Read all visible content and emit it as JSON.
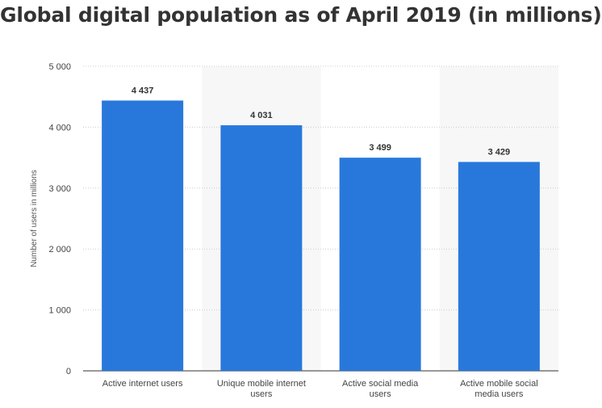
{
  "chart_data": {
    "type": "bar",
    "title": "Global digital population as of April 2019 (in millions)",
    "xlabel": "",
    "ylabel": "Number of users in millions",
    "categories": [
      "Active internet users",
      "Unique mobile internet users",
      "Active social media users",
      "Active mobile social media users"
    ],
    "values": [
      4437,
      4031,
      3499,
      3429
    ],
    "value_labels": [
      "4 437",
      "4 031",
      "3 499",
      "3 429"
    ],
    "ylim": [
      0,
      5000
    ],
    "y_ticks": [
      0,
      1000,
      2000,
      3000,
      4000,
      5000
    ],
    "y_tick_labels": [
      "0",
      "1 000",
      "2 000",
      "3 000",
      "4 000",
      "5 000"
    ],
    "grid": true,
    "bar_color": "#2878dc",
    "alternate_band_color": "#f7f7f7"
  }
}
